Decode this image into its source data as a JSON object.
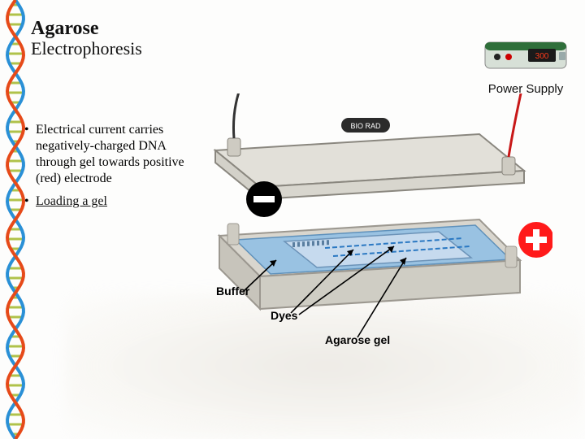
{
  "title": {
    "main": "Agarose",
    "sub": "Electrophoresis"
  },
  "power_supply": {
    "label": "Power Supply",
    "body_color": "#d7e0d7",
    "accent_color": "#2f6f3a",
    "display_bg": "#1a1a1a",
    "display_text_color": "#ff3a1a"
  },
  "bullets": [
    {
      "lead": "Electrical current",
      "rest": " carries negatively-charged DNA through gel towards positive (red) electrode",
      "link": false
    },
    {
      "lead": "Loading a gel",
      "rest": "",
      "link": true
    }
  ],
  "diagram": {
    "tank_fill": "#d9d6ce",
    "tank_stroke": "#9c9890",
    "buffer_fill": "#8fbfe6",
    "buffer_stroke": "#4a86b8",
    "gel_fill": "#c6daee",
    "gel_stroke": "#6c93b8",
    "well_color": "#5a7ea0",
    "dye_color": "#2a78c2",
    "lid_fill": "#e2e0d9",
    "lid_stroke": "#8a877f",
    "brand_bg": "#2b2b2b",
    "negative": {
      "fill": "#000000",
      "text": "#ffffff",
      "lead": "#333333"
    },
    "positive": {
      "fill": "#ff1a1a",
      "text": "#ffffff",
      "lead": "#c81818"
    },
    "callouts": {
      "buffer": "Buffer",
      "dyes": "Dyes",
      "gel": "Agarose gel"
    }
  },
  "dna_border": {
    "strand1": "#2a90d6",
    "strand2": "#e64a19",
    "rung": "#b0c24a"
  }
}
